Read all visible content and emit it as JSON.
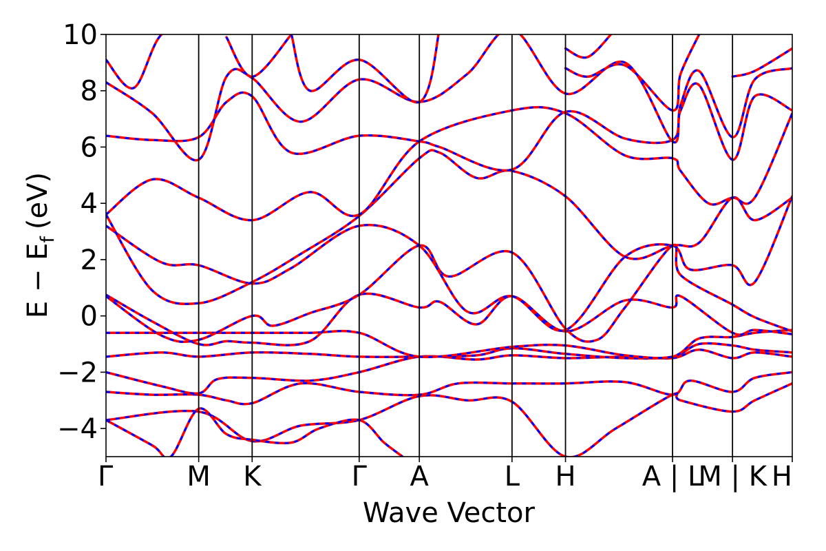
{
  "chart_data": {
    "type": "line",
    "title": "",
    "xlabel": "Wave Vector",
    "ylabel_main": "E − E",
    "ylabel_sub": "f",
    "ylabel_unit": "(eV)",
    "ylim": [
      -5,
      10
    ],
    "y_ticks": [
      -4,
      -2,
      0,
      2,
      4,
      6,
      8,
      10
    ],
    "y_tick_labels": [
      "−4",
      "−2",
      "0",
      "2",
      "4",
      "6",
      "8",
      "10"
    ],
    "grid": false,
    "legend": "none",
    "colors": {
      "dft": "#ff0000",
      "model": "#0000ff",
      "axes": "#000000"
    },
    "kpath_labels": [
      "Γ",
      "M",
      "K",
      "Γ",
      "A",
      "L",
      "H",
      "A | L",
      "M | K",
      "H"
    ],
    "kpath_positions": [
      0.0,
      1.0,
      1.577,
      2.732,
      3.381,
      4.381,
      4.958,
      6.113,
      6.76,
      7.405
    ],
    "series": [
      {
        "points": [
          [
            0,
            -3.7
          ],
          [
            1.0,
            -3.4
          ],
          [
            1.577,
            -4.45
          ],
          [
            2.1,
            -3.9
          ],
          [
            2.732,
            -3.7
          ],
          [
            3.381,
            -2.85
          ],
          [
            3.9,
            -3.0
          ],
          [
            4.381,
            -3.05
          ],
          [
            4.958,
            -5.0
          ],
          [
            5.5,
            -4.0
          ],
          [
            6.113,
            -2.8
          ],
          [
            6.2,
            -3.0
          ],
          [
            6.76,
            -3.4
          ],
          [
            7.0,
            -3.0
          ],
          [
            7.405,
            -2.4
          ]
        ]
      },
      {
        "points": [
          [
            0,
            -3.7
          ],
          [
            0.5,
            -4.6
          ],
          [
            0.7,
            -5.0
          ],
          [
            1.0,
            -3.3
          ],
          [
            1.3,
            -4.2
          ],
          [
            1.577,
            -4.4
          ],
          [
            2.0,
            -4.5
          ],
          [
            2.3,
            -4.0
          ],
          [
            2.732,
            -3.7
          ],
          [
            3.0,
            -4.5
          ],
          [
            3.2,
            -5.0
          ]
        ]
      },
      {
        "points": [
          [
            0,
            -2.7
          ],
          [
            0.5,
            -2.8
          ],
          [
            1.0,
            -2.8
          ],
          [
            1.3,
            -3.0
          ],
          [
            1.577,
            -3.1
          ],
          [
            2.1,
            -2.4
          ],
          [
            2.732,
            -2.7
          ],
          [
            3.381,
            -2.8
          ],
          [
            3.8,
            -2.4
          ],
          [
            4.381,
            -2.4
          ],
          [
            4.958,
            -2.4
          ],
          [
            5.6,
            -2.35
          ],
          [
            6.113,
            -2.8
          ],
          [
            6.3,
            -2.3
          ],
          [
            6.76,
            -2.7
          ],
          [
            7.0,
            -2.2
          ],
          [
            7.405,
            -2.0
          ]
        ]
      },
      {
        "points": [
          [
            0,
            -2.0
          ],
          [
            0.6,
            -2.5
          ],
          [
            1.0,
            -2.75
          ],
          [
            1.2,
            -2.25
          ],
          [
            1.577,
            -2.2
          ],
          [
            2.2,
            -2.3
          ],
          [
            2.732,
            -2.0
          ],
          [
            3.381,
            -1.45
          ],
          [
            4.0,
            -1.55
          ],
          [
            4.381,
            -1.4
          ],
          [
            4.958,
            -1.5
          ],
          [
            5.6,
            -1.45
          ],
          [
            6.113,
            -1.5
          ],
          [
            6.4,
            -1.2
          ],
          [
            6.76,
            -1.5
          ],
          [
            7.0,
            -1.3
          ],
          [
            7.405,
            -1.45
          ]
        ]
      },
      {
        "points": [
          [
            0,
            -1.45
          ],
          [
            0.6,
            -1.3
          ],
          [
            1.0,
            -1.45
          ],
          [
            1.577,
            -1.3
          ],
          [
            2.2,
            -1.35
          ],
          [
            2.732,
            -1.45
          ],
          [
            3.381,
            -1.45
          ],
          [
            4.0,
            -1.4
          ],
          [
            4.381,
            -1.15
          ],
          [
            4.958,
            -1.35
          ],
          [
            5.6,
            -1.5
          ],
          [
            6.113,
            -1.45
          ],
          [
            6.4,
            -1.0
          ],
          [
            6.76,
            -1.05
          ],
          [
            7.0,
            -1.2
          ],
          [
            7.405,
            -1.3
          ]
        ]
      },
      {
        "points": [
          [
            0,
            -0.6
          ],
          [
            0.6,
            -0.6
          ],
          [
            1.0,
            -0.6
          ],
          [
            1.577,
            -0.6
          ],
          [
            2.2,
            -0.6
          ],
          [
            2.732,
            -0.6
          ],
          [
            3.381,
            -1.45
          ],
          [
            4.381,
            -1.1
          ],
          [
            4.958,
            -1.05
          ],
          [
            5.6,
            -1.4
          ],
          [
            6.113,
            -1.45
          ],
          [
            6.4,
            -0.8
          ],
          [
            6.76,
            -0.75
          ],
          [
            7.0,
            -0.6
          ],
          [
            7.405,
            -0.5
          ]
        ]
      },
      {
        "points": [
          [
            0,
            0.75
          ],
          [
            0.5,
            -0.2
          ],
          [
            1.0,
            -1.0
          ],
          [
            1.3,
            -0.9
          ],
          [
            1.577,
            -0.95
          ],
          [
            2.2,
            -0.9
          ],
          [
            2.732,
            0.75
          ],
          [
            3.381,
            0.3
          ],
          [
            3.6,
            0.5
          ],
          [
            4.0,
            -0.3
          ],
          [
            4.381,
            0.7
          ],
          [
            4.958,
            -0.55
          ],
          [
            5.6,
            0.55
          ],
          [
            6.113,
            0.3
          ],
          [
            6.2,
            0.7
          ],
          [
            6.76,
            -0.6
          ],
          [
            7.0,
            -0.5
          ],
          [
            7.405,
            -0.65
          ]
        ]
      },
      {
        "points": [
          [
            0,
            0.7
          ],
          [
            0.6,
            -0.7
          ],
          [
            1.0,
            -0.85
          ],
          [
            1.577,
            0.0
          ],
          [
            1.8,
            -0.35
          ],
          [
            2.2,
            0.1
          ],
          [
            2.732,
            0.75
          ],
          [
            3.381,
            2.5
          ],
          [
            3.7,
            1.4
          ],
          [
            4.381,
            2.25
          ],
          [
            4.958,
            -0.45
          ],
          [
            5.3,
            -0.85
          ],
          [
            5.6,
            0.3
          ],
          [
            6.113,
            2.5
          ],
          [
            6.2,
            1.45
          ],
          [
            6.76,
            0.4
          ],
          [
            7.0,
            -0.05
          ],
          [
            7.405,
            -0.55
          ]
        ]
      },
      {
        "points": [
          [
            0,
            3.2
          ],
          [
            0.6,
            1.9
          ],
          [
            1.0,
            1.8
          ],
          [
            1.577,
            1.15
          ],
          [
            2.0,
            1.7
          ],
          [
            2.732,
            3.2
          ],
          [
            3.381,
            2.5
          ],
          [
            3.9,
            0.15
          ],
          [
            4.381,
            0.7
          ],
          [
            4.958,
            -0.5
          ],
          [
            5.6,
            2.1
          ],
          [
            6.113,
            2.5
          ],
          [
            6.3,
            1.65
          ],
          [
            6.76,
            1.8
          ],
          [
            7.0,
            1.2
          ],
          [
            7.405,
            4.25
          ]
        ]
      },
      {
        "points": [
          [
            0,
            3.6
          ],
          [
            0.5,
            0.9
          ],
          [
            1.0,
            0.45
          ],
          [
            1.577,
            1.2
          ],
          [
            2.1,
            2.2
          ],
          [
            2.732,
            3.55
          ],
          [
            3.381,
            5.6
          ],
          [
            3.6,
            5.8
          ],
          [
            4.0,
            4.9
          ],
          [
            4.381,
            5.15
          ],
          [
            4.958,
            4.25
          ],
          [
            5.6,
            2.1
          ],
          [
            6.113,
            2.5
          ],
          [
            6.4,
            2.6
          ],
          [
            6.76,
            4.2
          ],
          [
            7.0,
            3.4
          ],
          [
            7.405,
            4.2
          ]
        ]
      },
      {
        "points": [
          [
            0,
            3.6
          ],
          [
            0.5,
            4.85
          ],
          [
            1.0,
            4.2
          ],
          [
            1.577,
            3.4
          ],
          [
            2.2,
            4.4
          ],
          [
            2.732,
            3.6
          ],
          [
            3.381,
            6.2
          ],
          [
            4.381,
            7.3
          ],
          [
            4.958,
            7.2
          ],
          [
            5.6,
            5.7
          ],
          [
            6.113,
            5.6
          ],
          [
            6.2,
            5.15
          ],
          [
            6.5,
            4.0
          ],
          [
            6.76,
            4.2
          ],
          [
            7.0,
            4.2
          ],
          [
            7.405,
            7.2
          ]
        ]
      },
      {
        "points": [
          [
            0,
            6.4
          ],
          [
            0.5,
            6.25
          ],
          [
            1.0,
            6.35
          ],
          [
            1.3,
            7.6
          ],
          [
            1.577,
            7.8
          ],
          [
            2.0,
            5.8
          ],
          [
            2.732,
            6.4
          ],
          [
            3.381,
            6.2
          ],
          [
            3.6,
            6.0
          ],
          [
            4.381,
            5.2
          ],
          [
            4.958,
            7.25
          ],
          [
            5.6,
            6.3
          ],
          [
            6.113,
            6.25
          ],
          [
            6.2,
            7.3
          ],
          [
            6.4,
            8.2
          ],
          [
            6.76,
            5.55
          ],
          [
            7.0,
            7.8
          ],
          [
            7.405,
            7.3
          ]
        ]
      },
      {
        "points": [
          [
            0,
            8.3
          ],
          [
            0.5,
            7.2
          ],
          [
            1.0,
            5.55
          ],
          [
            1.3,
            8.5
          ],
          [
            1.577,
            8.45
          ],
          [
            2.1,
            6.9
          ],
          [
            2.732,
            8.4
          ],
          [
            3.381,
            7.6
          ],
          [
            3.9,
            8.6
          ],
          [
            4.381,
            10.2
          ],
          [
            4.958,
            7.9
          ],
          [
            5.6,
            9.0
          ],
          [
            6.113,
            6.2
          ],
          [
            6.2,
            7.5
          ],
          [
            6.4,
            8.7
          ],
          [
            6.76,
            6.35
          ],
          [
            7.0,
            8.4
          ],
          [
            7.405,
            8.8
          ]
        ]
      },
      {
        "points": [
          [
            0,
            9.1
          ],
          [
            0.3,
            8.1
          ],
          [
            0.6,
            10.0
          ],
          [
            1.0,
            10.2
          ]
        ]
      },
      {
        "points": [
          [
            1.3,
            9.9
          ],
          [
            1.577,
            8.5
          ],
          [
            2.0,
            10.0
          ]
        ]
      },
      {
        "points": [
          [
            2.0,
            10.0
          ],
          [
            2.2,
            8.0
          ],
          [
            2.732,
            9.1
          ],
          [
            3.381,
            7.6
          ],
          [
            3.6,
            10.2
          ]
        ]
      },
      {
        "points": [
          [
            4.958,
            8.8
          ],
          [
            5.2,
            8.5
          ],
          [
            5.6,
            8.9
          ],
          [
            6.113,
            7.3
          ],
          [
            6.2,
            8.6
          ],
          [
            6.4,
            10.0
          ]
        ]
      },
      {
        "points": [
          [
            4.958,
            9.5
          ],
          [
            5.2,
            9.2
          ],
          [
            5.5,
            10.2
          ]
        ]
      },
      {
        "points": [
          [
            6.76,
            8.5
          ],
          [
            7.0,
            8.7
          ],
          [
            7.405,
            9.5
          ]
        ]
      }
    ]
  }
}
